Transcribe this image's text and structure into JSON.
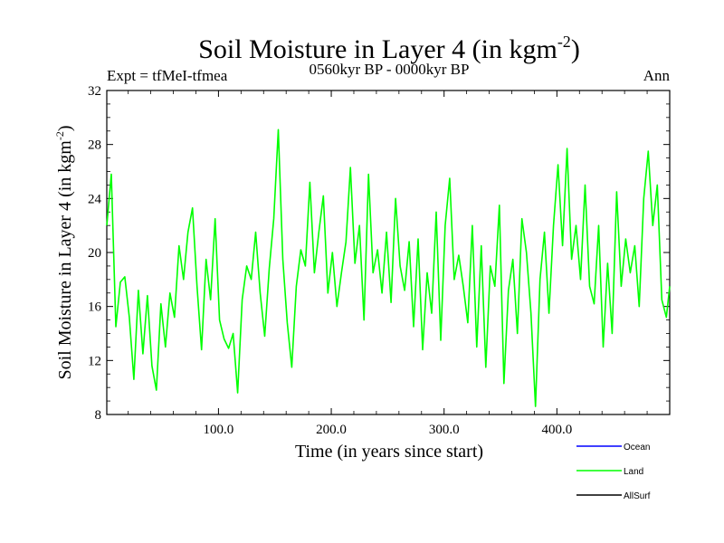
{
  "chart_data": {
    "type": "line",
    "title": "Soil Moisture in Layer 4 (in kgm",
    "title_superscript": "-2",
    "title_suffix": ")",
    "subtitle_left": "Expt = tfMeI-tfmea",
    "subtitle_center": "0560kyr BP - 0000kyr BP",
    "subtitle_right": "Ann",
    "xlabel": "Time (in years since start)",
    "ylabel": "Soil Moisture in Layer 4 (in kgm",
    "ylabel_superscript": "-2",
    "ylabel_suffix": ")",
    "xlim": [
      1,
      500
    ],
    "ylim": [
      8,
      32
    ],
    "x_ticks": [
      100,
      200,
      300,
      400
    ],
    "x_tick_labels": [
      "100.0",
      "200.0",
      "300.0",
      "400.0"
    ],
    "y_ticks": [
      8,
      12,
      16,
      20,
      24,
      28,
      32
    ],
    "y_tick_labels": [
      "8",
      "12",
      "16",
      "20",
      "24",
      "28",
      "32"
    ],
    "grid": false,
    "legend_position": "bottom-right",
    "legend": [
      {
        "name": "Ocean",
        "color": "#0000ff"
      },
      {
        "name": "Land",
        "color": "#00ff00"
      },
      {
        "name": "AllSurf",
        "color": "#000000"
      }
    ],
    "series": [
      {
        "name": "Land",
        "color": "#00ff00",
        "x": [
          1,
          5,
          9,
          13,
          17,
          21,
          25,
          29,
          33,
          37,
          41,
          45,
          49,
          53,
          57,
          61,
          65,
          69,
          73,
          77,
          81,
          85,
          89,
          93,
          97,
          101,
          105,
          109,
          113,
          117,
          121,
          125,
          129,
          133,
          137,
          141,
          145,
          149,
          153,
          157,
          161,
          165,
          169,
          173,
          177,
          181,
          185,
          189,
          193,
          197,
          201,
          205,
          209,
          213,
          217,
          221,
          225,
          229,
          233,
          237,
          241,
          245,
          249,
          253,
          257,
          261,
          265,
          269,
          273,
          277,
          281,
          285,
          289,
          293,
          297,
          301,
          305,
          309,
          313,
          317,
          321,
          325,
          329,
          333,
          337,
          341,
          345,
          349,
          353,
          357,
          361,
          365,
          369,
          373,
          377,
          381,
          385,
          389,
          393,
          397,
          401,
          405,
          409,
          413,
          417,
          421,
          425,
          429,
          433,
          437,
          441,
          445,
          449,
          453,
          457,
          461,
          465,
          469,
          473,
          477,
          481,
          485,
          489,
          493,
          497,
          500
        ],
        "values": [
          22.0,
          25.8,
          14.5,
          17.8,
          18.2,
          15.2,
          10.6,
          17.2,
          12.5,
          16.8,
          11.6,
          9.8,
          16.2,
          13.0,
          17.0,
          15.2,
          20.5,
          18.0,
          21.5,
          23.3,
          17.5,
          12.8,
          19.5,
          16.5,
          22.5,
          15.0,
          13.6,
          12.9,
          14.0,
          9.6,
          16.5,
          19.0,
          18.0,
          21.5,
          17.0,
          13.8,
          18.8,
          22.5,
          29.1,
          19.5,
          14.8,
          11.5,
          17.5,
          20.2,
          19.0,
          25.2,
          18.5,
          21.5,
          24.2,
          17.0,
          20.0,
          16.0,
          18.5,
          20.8,
          26.3,
          19.2,
          22.0,
          15.0,
          25.8,
          18.5,
          20.2,
          17.0,
          21.5,
          16.3,
          24.0,
          19.0,
          17.2,
          20.8,
          14.5,
          21.0,
          12.8,
          18.5,
          15.5,
          23.0,
          13.5,
          22.0,
          25.5,
          18.0,
          19.8,
          17.5,
          14.8,
          22.0,
          13.0,
          20.5,
          11.5,
          19.0,
          17.5,
          23.5,
          10.3,
          17.2,
          19.5,
          14.0,
          22.5,
          20.0,
          15.5,
          8.6,
          18.0,
          21.5,
          15.5,
          22.0,
          26.5,
          20.5,
          27.7,
          19.5,
          22.0,
          18.0,
          25.0,
          17.5,
          16.2,
          22.0,
          13.0,
          19.2,
          14.0,
          24.5,
          17.5,
          21.0,
          18.5,
          20.5,
          16.0,
          24.0,
          27.5,
          22.0,
          25.0,
          16.5,
          15.2,
          17.5
        ]
      }
    ]
  }
}
